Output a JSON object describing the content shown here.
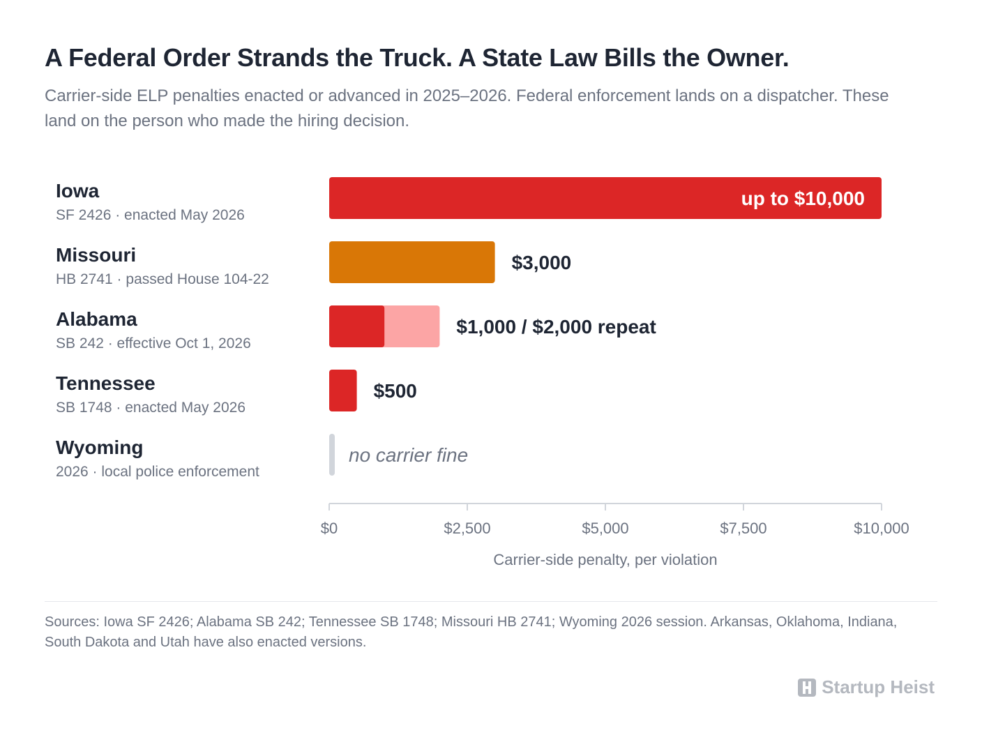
{
  "title": "A Federal Order Strands the Truck. A State Law Bills the Owner.",
  "subtitle": "Carrier-side ELP penalties enacted or advanced in 2025–2026. Federal enforcement lands on a dispatcher. These land on the person who made the hiring decision.",
  "sources": "Sources: Iowa SF 2426; Alabama SB 242; Tennessee SB 1748; Missouri HB 2741; Wyoming 2026 session. Arkansas, Oklahoma, Indiana, South Dakota and Utah have also enacted versions.",
  "brand": "Startup Heist",
  "chart_data": {
    "type": "bar",
    "orientation": "horizontal",
    "xlabel": "Carrier-side penalty, per violation",
    "xlim": [
      0,
      10000
    ],
    "ticks": [
      0,
      2500,
      5000,
      7500,
      10000
    ],
    "tick_labels": [
      "$0",
      "$2,500",
      "$5,000",
      "$7,500",
      "$10,000"
    ],
    "grid": false,
    "rows": [
      {
        "state": "Iowa",
        "detail": "SF 2426 · enacted May 2026",
        "value": 10000,
        "label": "up to $10,000",
        "color": "#dc2626",
        "label_inside": true
      },
      {
        "state": "Missouri",
        "detail": "HB 2741 · passed House 104-22",
        "value": 3000,
        "label": "$3,000",
        "color": "#d97706"
      },
      {
        "state": "Alabama",
        "detail": "SB 242 · effective Oct 1, 2026",
        "value": 1000,
        "repeat_value": 2000,
        "label": "$1,000 / $2,000 repeat",
        "color": "#dc2626",
        "repeat_color": "#fca5a5"
      },
      {
        "state": "Tennessee",
        "detail": "SB 1748 · enacted May 2026",
        "value": 500,
        "label": "$500",
        "color": "#dc2626"
      },
      {
        "state": "Wyoming",
        "detail": "2026 · local police enforcement",
        "value": 0,
        "label": "no carrier fine",
        "color": "#d1d5db",
        "no_fine": true
      }
    ]
  }
}
